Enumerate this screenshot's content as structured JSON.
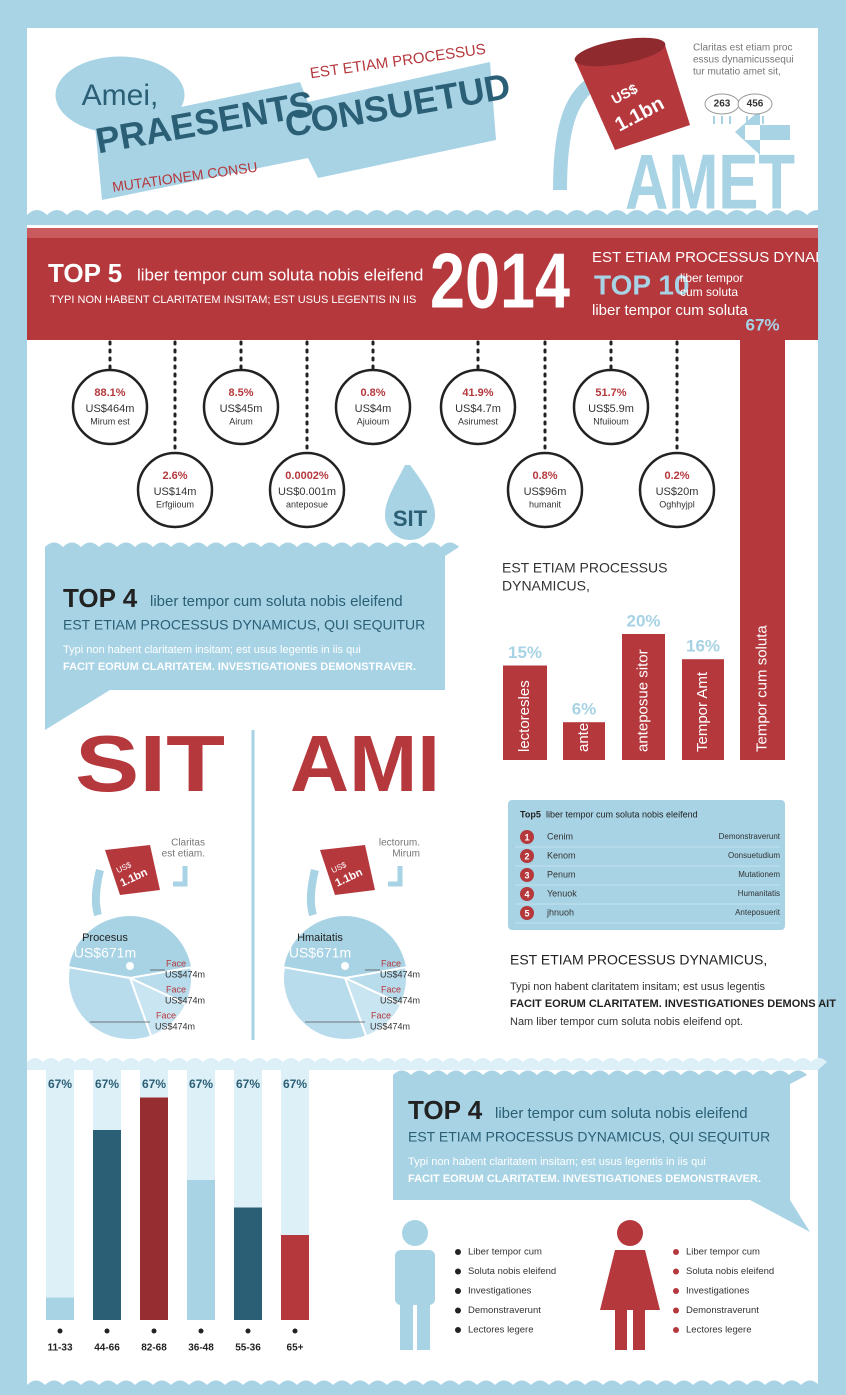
{
  "header": {
    "bubble": "Amei,",
    "banner_main": "PRAESENTS",
    "banner_second": "CONSUETUD",
    "red_top": "EST ETIAM PROCESSUS",
    "red_bottom": "MUTATIONEM CONSU",
    "bucket_currency": "US$",
    "bucket_amount": "1.1bn",
    "note": [
      "Claritas est etiam proc",
      "essus dynamicussequi",
      "tur mutatio amet sit,"
    ],
    "clouds": [
      "263",
      "456"
    ],
    "big_word": "AMET"
  },
  "band": {
    "top5_lead": "TOP 5",
    "top5_text": "liber tempor cum soluta nobis eleifend",
    "subline": "TYPI NON HABENT CLARITATEM INSITAM; EST USUS LEGENTIS IN IIS",
    "year": "2014",
    "right_top": "EST ETIAM PROCESSUS DYNAI",
    "top10_lead": "TOP 10",
    "top10_text": [
      "liber tempor",
      "cum soluta"
    ],
    "right_bottom": "liber tempor cum soluta"
  },
  "circles": [
    {
      "percent": "88.1%",
      "amount": "US$464m",
      "name": "Mirum est"
    },
    {
      "percent": "2.6%",
      "amount": "US$14m",
      "name": "Erfgiioum"
    },
    {
      "percent": "8.5%",
      "amount": "US$45m",
      "name": "Airum"
    },
    {
      "percent": "0.0002%",
      "amount": "US$0.001m",
      "name": "anteposue"
    },
    {
      "percent": "0.8%",
      "amount": "US$4m",
      "name": "Ajuioum"
    },
    {
      "percent": "41.9%",
      "amount": "US$4.7m",
      "name": "Asirumest"
    },
    {
      "percent": "0.8%",
      "amount": "US$96m",
      "name": "humanit"
    },
    {
      "percent": "51.7%",
      "amount": "US$5.9m",
      "name": "Nfuiioum"
    },
    {
      "percent": "0.2%",
      "amount": "US$20m",
      "name": "Oghhyjpl"
    }
  ],
  "drop_label": "SIT",
  "top4_a": {
    "lead": "TOP 4",
    "text": "liber tempor cum soluta nobis eleifend",
    "sub": "EST ETIAM PROCESSUS DYNAMICUS, QUI SEQUITUR",
    "body": "Typi non habent claritatem insitam; est usus legentis in iis qui",
    "bold": "FACIT EORUM CLARITATEM. INVESTIGATIONES DEMONSTRAVER."
  },
  "bar_chart": {
    "title": [
      "EST ETIAM PROCESSUS",
      "DYNAMICUS,"
    ],
    "categories": [
      "lectoresles",
      "antei",
      "anteposue sitor",
      "Tempor Amt",
      "Tempor cum soluta"
    ],
    "values": [
      15,
      6,
      20,
      16,
      67
    ],
    "value_labels": [
      "15%",
      "6%",
      "20%",
      "16%",
      "67%"
    ]
  },
  "panels": [
    {
      "title": "SIT",
      "note": [
        "Claritas",
        "est etiam."
      ],
      "bucket_currency": "US$",
      "bucket_amount": "1.1bn",
      "pie_name": "Procesus",
      "pie_amount": "US$671m",
      "slices": [
        {
          "name": "Face",
          "amount": "US$474m"
        },
        {
          "name": "Face",
          "amount": "US$474m"
        },
        {
          "name": "Face",
          "amount": "US$474m"
        }
      ]
    },
    {
      "title": "AMI",
      "note": [
        "lectorum.",
        "Mirum"
      ],
      "bucket_currency": "US$",
      "bucket_amount": "1.1bn",
      "pie_name": "Hmaitatis",
      "pie_amount": "US$671m",
      "slices": [
        {
          "name": "Face",
          "amount": "US$474m"
        },
        {
          "name": "Face",
          "amount": "US$474m"
        },
        {
          "name": "Face",
          "amount": "US$474m"
        }
      ]
    }
  ],
  "ranking": {
    "title_lead": "Top5",
    "title_text": "liber tempor cum soluta nobis eleifend",
    "rows": [
      [
        "1",
        "Cenim",
        "Demonstraverunt"
      ],
      [
        "2",
        "Kenom",
        "Oonsuetudium"
      ],
      [
        "3",
        "Penum",
        "Mutationem"
      ],
      [
        "4",
        "Yenuok",
        "Humanitatis"
      ],
      [
        "5",
        "jhnuoh",
        "Anteposuerit"
      ]
    ]
  },
  "text_block": {
    "heading": "EST ETIAM PROCESSUS DYNAMICUS,",
    "line1": "Typi non habent claritatem insitam; est usus legentis",
    "bold": "FACIT EORUM CLARITATEM. INVESTIGATIONES DEMONS AIT",
    "line2": "Nam liber tempor cum soluta nobis eleifend opt."
  },
  "bottom_bars": {
    "categories": [
      "11-33",
      "44-66",
      "82-68",
      "36-48",
      "55-36",
      "65+"
    ],
    "caption": [
      "67%",
      "67%",
      "67%",
      "67%",
      "67%",
      "67%"
    ],
    "values": [
      9,
      76,
      89,
      56,
      45,
      34
    ],
    "colors": [
      "#a7d3e5",
      "#2b5f75",
      "#962d31",
      "#a7d3e5",
      "#2b5f75",
      "#b5383d"
    ]
  },
  "top4_b": {
    "lead": "TOP 4",
    "text": "liber tempor cum soluta nobis eleifend",
    "sub": "EST ETIAM PROCESSUS DYNAMICUS, QUI SEQUITUR",
    "body": "Typi non habent claritatem insitam; est usus legentis in iis qui",
    "bold": "FACIT EORUM CLARITATEM. INVESTIGATIONES DEMONSTRAVER."
  },
  "people": {
    "male": [
      "Liber tempor cum",
      "Soluta nobis eleifend",
      "Investigationes",
      "Demonstraverunt",
      "Lectores legere"
    ],
    "female": [
      "Liber tempor cum",
      "Soluta nobis eleifend",
      "Investigationes",
      "Demonstraverunt",
      "Lectores legere"
    ]
  }
}
